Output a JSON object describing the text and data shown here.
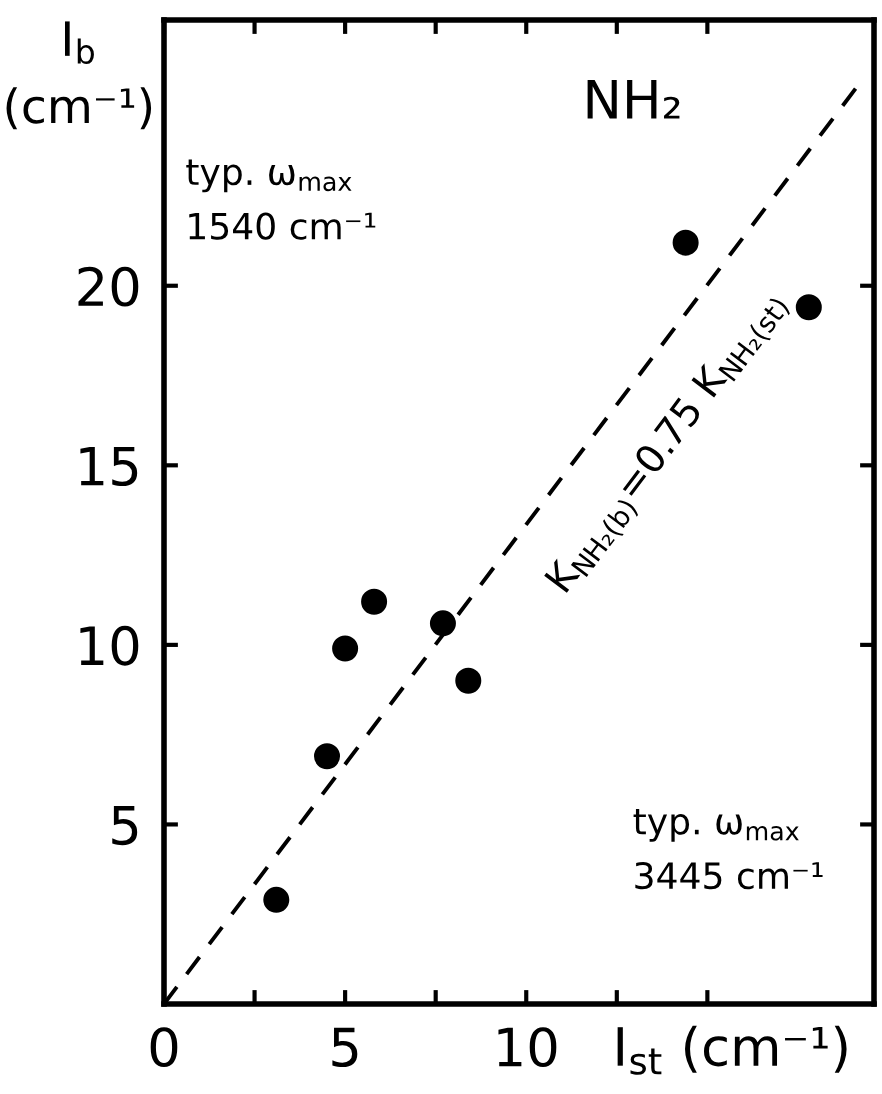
{
  "chart_data": {
    "type": "scatter",
    "title": "NH₂",
    "xlabel": "I$_{st}$ (cm⁻¹)",
    "ylabel": "I$_{b}$\n(cm⁻¹)",
    "annotations": [
      "K$_{NH₂(b)}$=0.75 K$_{NH₂(st)}$",
      "typ. ω$_{max}$\n1540 cm⁻¹",
      "typ. ω$_{max}$\n3445 cm⁻¹"
    ],
    "series": [
      {
        "color": "#000000",
        "marker": "circle",
        "x": [
          3.1,
          4.5,
          5.0,
          5.8,
          7.7,
          8.4,
          14.4,
          17.8
        ],
        "values": [
          2.9,
          6.9,
          9.9,
          11.2,
          10.6,
          9.0,
          21.2,
          19.4
        ]
      },
      {
        "type": "line",
        "color": "#000000",
        "line_style": "dashed",
        "marker": "none",
        "x": [
          0,
          19.1
        ],
        "values": [
          0,
          25.5
        ]
      }
    ],
    "xlim": [
      0,
      19.6
    ],
    "ylim": [
      0,
      27.4
    ],
    "xticks": [
      0,
      {
        "value": 2.5,
        "label": null
      },
      5,
      {
        "value": 7.5,
        "label": null
      },
      10,
      {
        "value": 12.5,
        "label": null
      },
      {
        "value": 15,
        "label": null
      }
    ],
    "yticks": [
      5,
      10,
      15,
      20
    ],
    "grid": false,
    "legend": false
  }
}
